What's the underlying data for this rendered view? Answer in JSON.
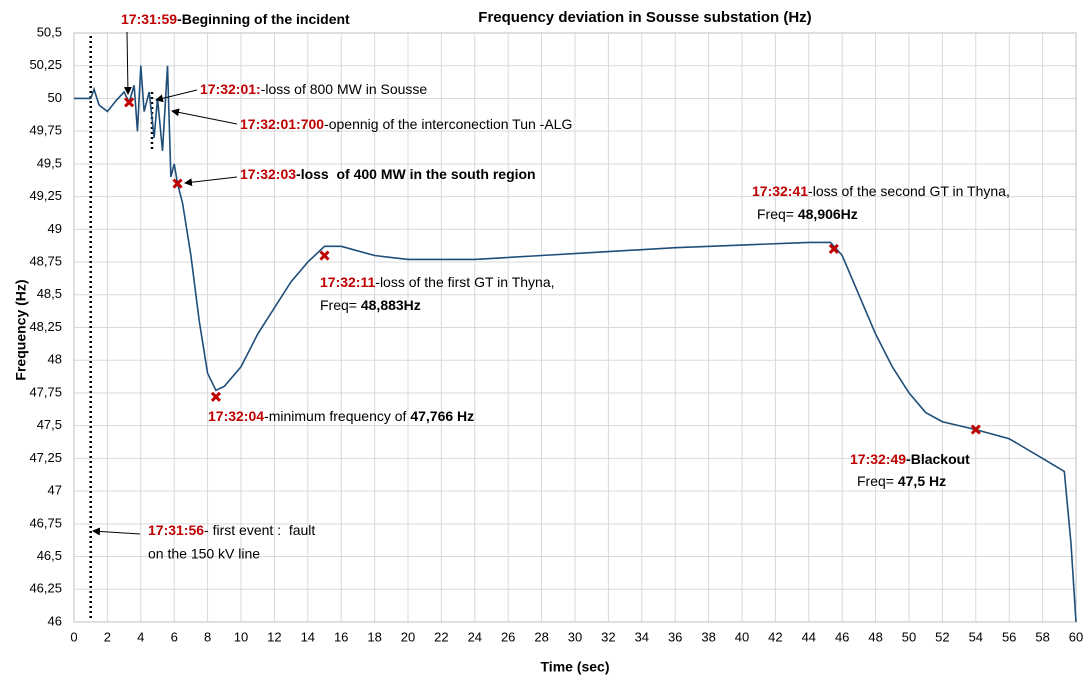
{
  "chart_data": {
    "type": "line",
    "title": "Frequency deviation in Sousse substation (Hz)",
    "xlabel": "Time (sec)",
    "ylabel": "Frequency (Hz)",
    "xlim": [
      0,
      60
    ],
    "xticks": [
      0,
      2,
      4,
      6,
      8,
      10,
      12,
      14,
      16,
      18,
      20,
      22,
      24,
      26,
      28,
      30,
      32,
      34,
      36,
      38,
      40,
      42,
      44,
      46,
      48,
      50,
      52,
      54,
      56,
      58,
      60
    ],
    "ylim": [
      46,
      50.5
    ],
    "yticks": [
      {
        "value": 46,
        "label": "46"
      },
      {
        "value": 46.25,
        "label": "46,25"
      },
      {
        "value": 46.5,
        "label": "46,5"
      },
      {
        "value": 46.75,
        "label": "46,75"
      },
      {
        "value": 47,
        "label": "47"
      },
      {
        "value": 47.25,
        "label": "47,25"
      },
      {
        "value": 47.5,
        "label": "47,5"
      },
      {
        "value": 47.75,
        "label": "47,75"
      },
      {
        "value": 48,
        "label": "48"
      },
      {
        "value": 48.25,
        "label": "48,25"
      },
      {
        "value": 48.5,
        "label": "48,5"
      },
      {
        "value": 48.75,
        "label": "48,75"
      },
      {
        "value": 49,
        "label": "49"
      },
      {
        "value": 49.25,
        "label": "49,25"
      },
      {
        "value": 49.5,
        "label": "49,5"
      },
      {
        "value": 49.75,
        "label": "49,75"
      },
      {
        "value": 50,
        "label": "50"
      },
      {
        "value": 50.25,
        "label": "50,25"
      },
      {
        "value": 50.5,
        "label": "50,5"
      }
    ],
    "grid": true,
    "series": [
      {
        "color": "#1f4e79",
        "x": [
          0,
          1,
          1.2,
          1.5,
          2,
          2.5,
          3,
          3.3,
          3.6,
          3.8,
          4,
          4.2,
          4.5,
          4.8,
          5,
          5.3,
          5.6,
          5.8,
          6,
          6.2,
          6.5,
          7,
          7.5,
          8,
          8.5,
          9,
          10,
          11,
          12,
          13,
          14,
          15,
          16,
          18,
          20,
          24,
          28,
          32,
          36,
          40,
          44,
          45.3,
          46,
          47,
          48,
          49,
          50,
          51,
          52,
          54,
          56,
          58,
          59.3,
          59.7,
          60
        ],
        "values": [
          50,
          50,
          50.07,
          49.95,
          49.9,
          49.98,
          50.05,
          49.97,
          50.1,
          49.75,
          50.25,
          49.9,
          50.05,
          49.7,
          50,
          49.6,
          50.25,
          49.4,
          49.5,
          49.35,
          49.2,
          48.8,
          48.3,
          47.9,
          47.77,
          47.8,
          47.95,
          48.2,
          48.4,
          48.6,
          48.75,
          48.87,
          48.87,
          48.8,
          48.77,
          48.77,
          48.8,
          48.83,
          48.86,
          48.88,
          48.9,
          48.9,
          48.8,
          48.5,
          48.2,
          47.95,
          47.75,
          47.6,
          47.53,
          47.47,
          47.4,
          47.25,
          47.15,
          46.6,
          46
        ]
      },
      {
        "color": "#c00000",
        "marker": "x",
        "x": [
          3.3,
          6.2,
          8.5,
          15,
          45.5,
          54
        ],
        "values": [
          49.97,
          49.35,
          47.72,
          48.8,
          48.85,
          47.47
        ]
      }
    ],
    "annotations": [
      {
        "time": "17:31:59",
        "text": "-Beginning of the incident"
      },
      {
        "time": "17:32:01:",
        "text": "-loss of 800 MW in Sousse"
      },
      {
        "time": "17:32:01:700",
        "text": "-opennig of the interconection Tun -ALG"
      },
      {
        "time": "17:32:03",
        "text": "-loss  of 400 MW in the south region"
      },
      {
        "time": "17:32:41",
        "text": "-loss of the second GT in Thyna,",
        "line2": "Freq= ",
        "bold2": "48,906Hz"
      },
      {
        "time": "17:32:11",
        "text": "-loss of the first GT in Thyna,",
        "line2": "Freq= ",
        "bold2": "48,883Hz"
      },
      {
        "time": "17:32:04",
        "text": "-minimum frequency of ",
        "bold": "47,766 Hz"
      },
      {
        "time": "17:32:49",
        "text": "-Blackout",
        "line2": "Freq= ",
        "bold2": "47,5 Hz"
      },
      {
        "time": "17:31:56",
        "text": "- first event :  fault",
        "line2": "on the 150 kV line"
      }
    ]
  }
}
